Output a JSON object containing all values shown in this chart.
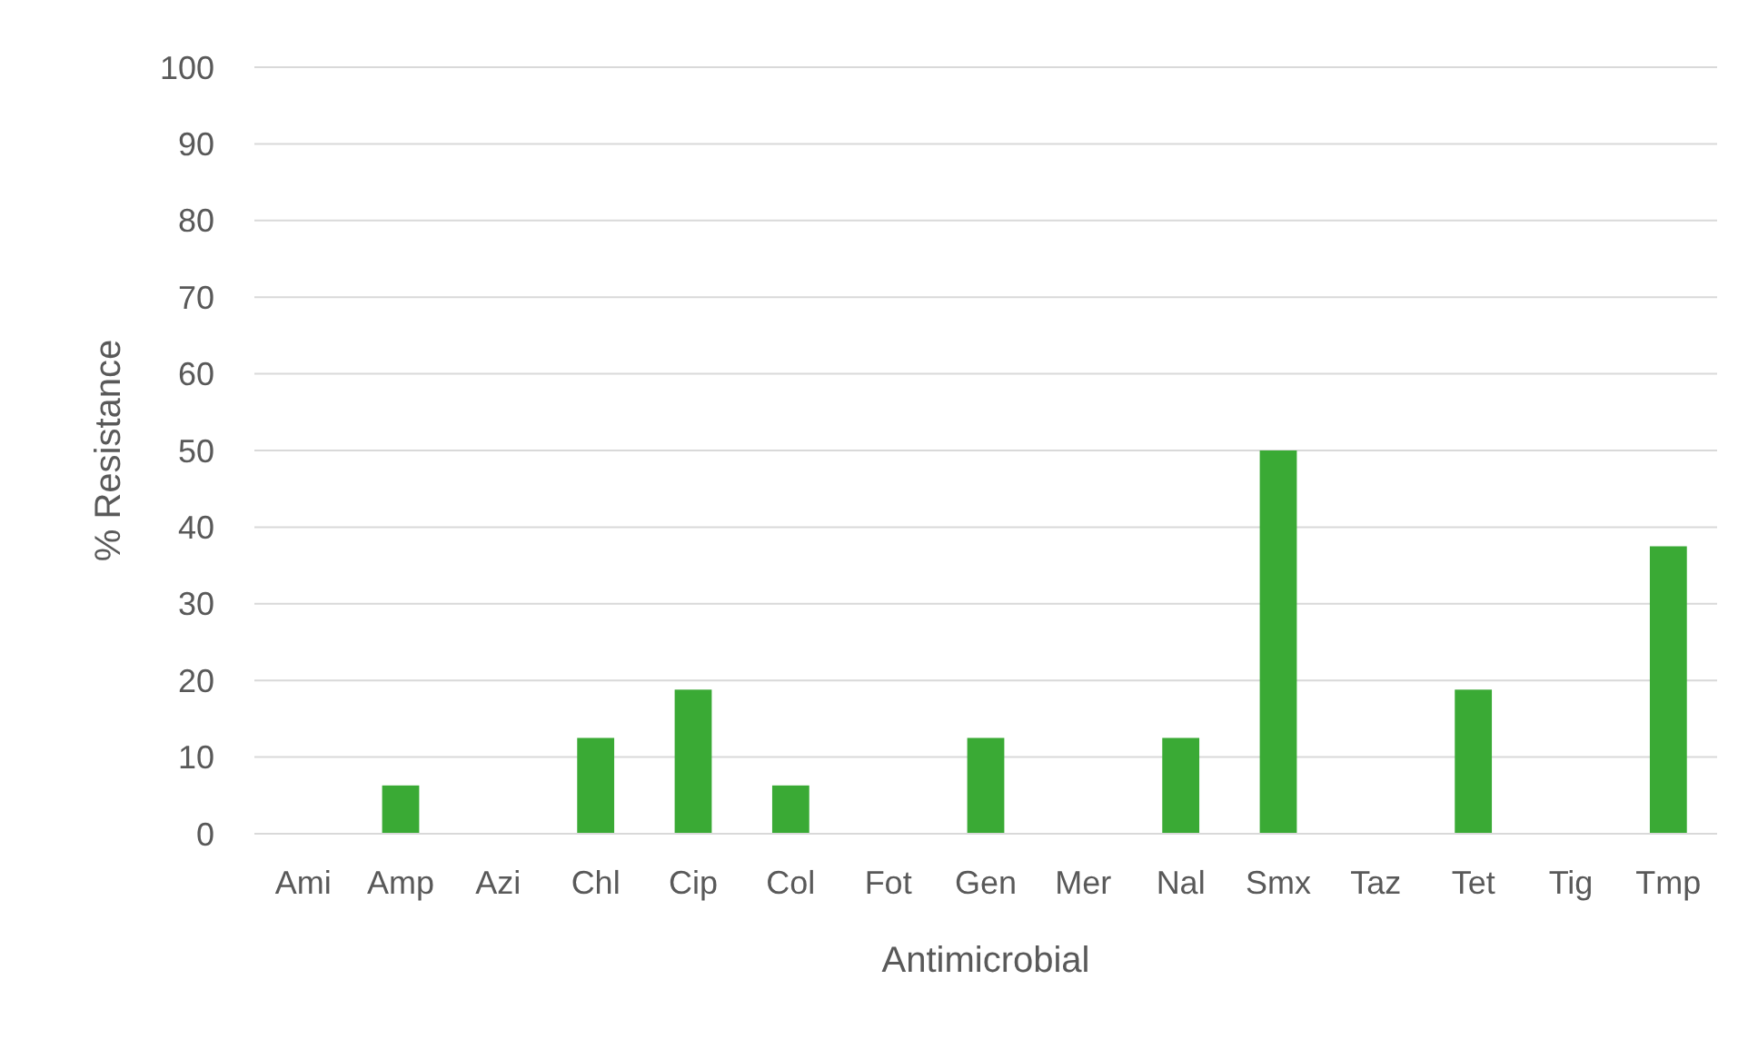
{
  "chart_data": {
    "type": "bar",
    "xlabel": "Antimicrobial",
    "ylabel": "% Resistance",
    "categories": [
      "Ami",
      "Amp",
      "Azi",
      "Chl",
      "Cip",
      "Col",
      "Fot",
      "Gen",
      "Mer",
      "Nal",
      "Smx",
      "Taz",
      "Tet",
      "Tig",
      "Tmp"
    ],
    "values": [
      0,
      6.3,
      0,
      12.5,
      18.8,
      6.3,
      0,
      12.5,
      0,
      12.5,
      50,
      0,
      18.8,
      0,
      37.5
    ],
    "color": "#3aaa35",
    "ylim": [
      0,
      100
    ],
    "yticks": [
      0,
      10,
      20,
      30,
      40,
      50,
      60,
      70,
      80,
      90,
      100
    ],
    "grid": "y"
  }
}
